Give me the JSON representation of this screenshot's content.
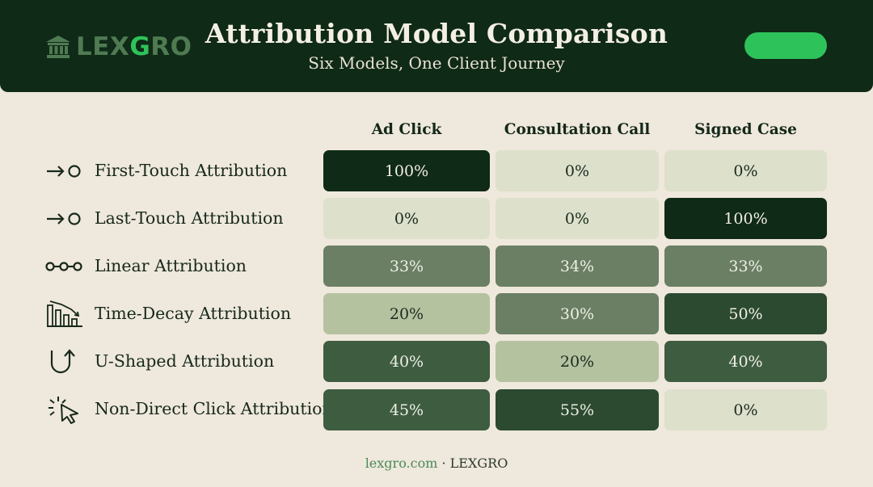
{
  "header": {
    "logo_prefix": "LEX",
    "logo_accent": "G",
    "logo_suffix": "RO",
    "title": "Attribution Model Comparison",
    "subtitle": "Six Models, One Client Journey"
  },
  "colors": {
    "header_bg": "#0f2a17",
    "page_bg": "#efe8dc",
    "accent": "#2ec25a",
    "cell_scale": [
      "#dde0cb",
      "#b5c2a0",
      "#6a7f63",
      "#3e5c40",
      "#2c4a30",
      "#0f2a17"
    ]
  },
  "icons": {
    "logo": "institution-icon",
    "rows": [
      "arrow-to-circle-icon",
      "arrow-to-circle-icon",
      "linked-nodes-icon",
      "declining-bars-icon",
      "u-turn-arrow-icon",
      "cursor-click-icon"
    ]
  },
  "chart_data": {
    "type": "heatmap",
    "title": "Attribution Model Comparison",
    "subtitle": "Six Models, One Client Journey",
    "columns": [
      "Ad Click",
      "Consultation Call",
      "Signed Case"
    ],
    "rows": [
      "First-Touch Attribution",
      "Last-Touch Attribution",
      "Linear Attribution",
      "Time-Decay Attribution",
      "U-Shaped Attribution",
      "Non-Direct Click Attribution"
    ],
    "values": [
      [
        100,
        0,
        0
      ],
      [
        0,
        0,
        100
      ],
      [
        33,
        34,
        33
      ],
      [
        20,
        30,
        50
      ],
      [
        40,
        20,
        40
      ],
      [
        45,
        55,
        0
      ]
    ],
    "unit": "%"
  },
  "footer": {
    "site": "lexgro.com",
    "separator": "·",
    "brand": "LEXGRO"
  }
}
